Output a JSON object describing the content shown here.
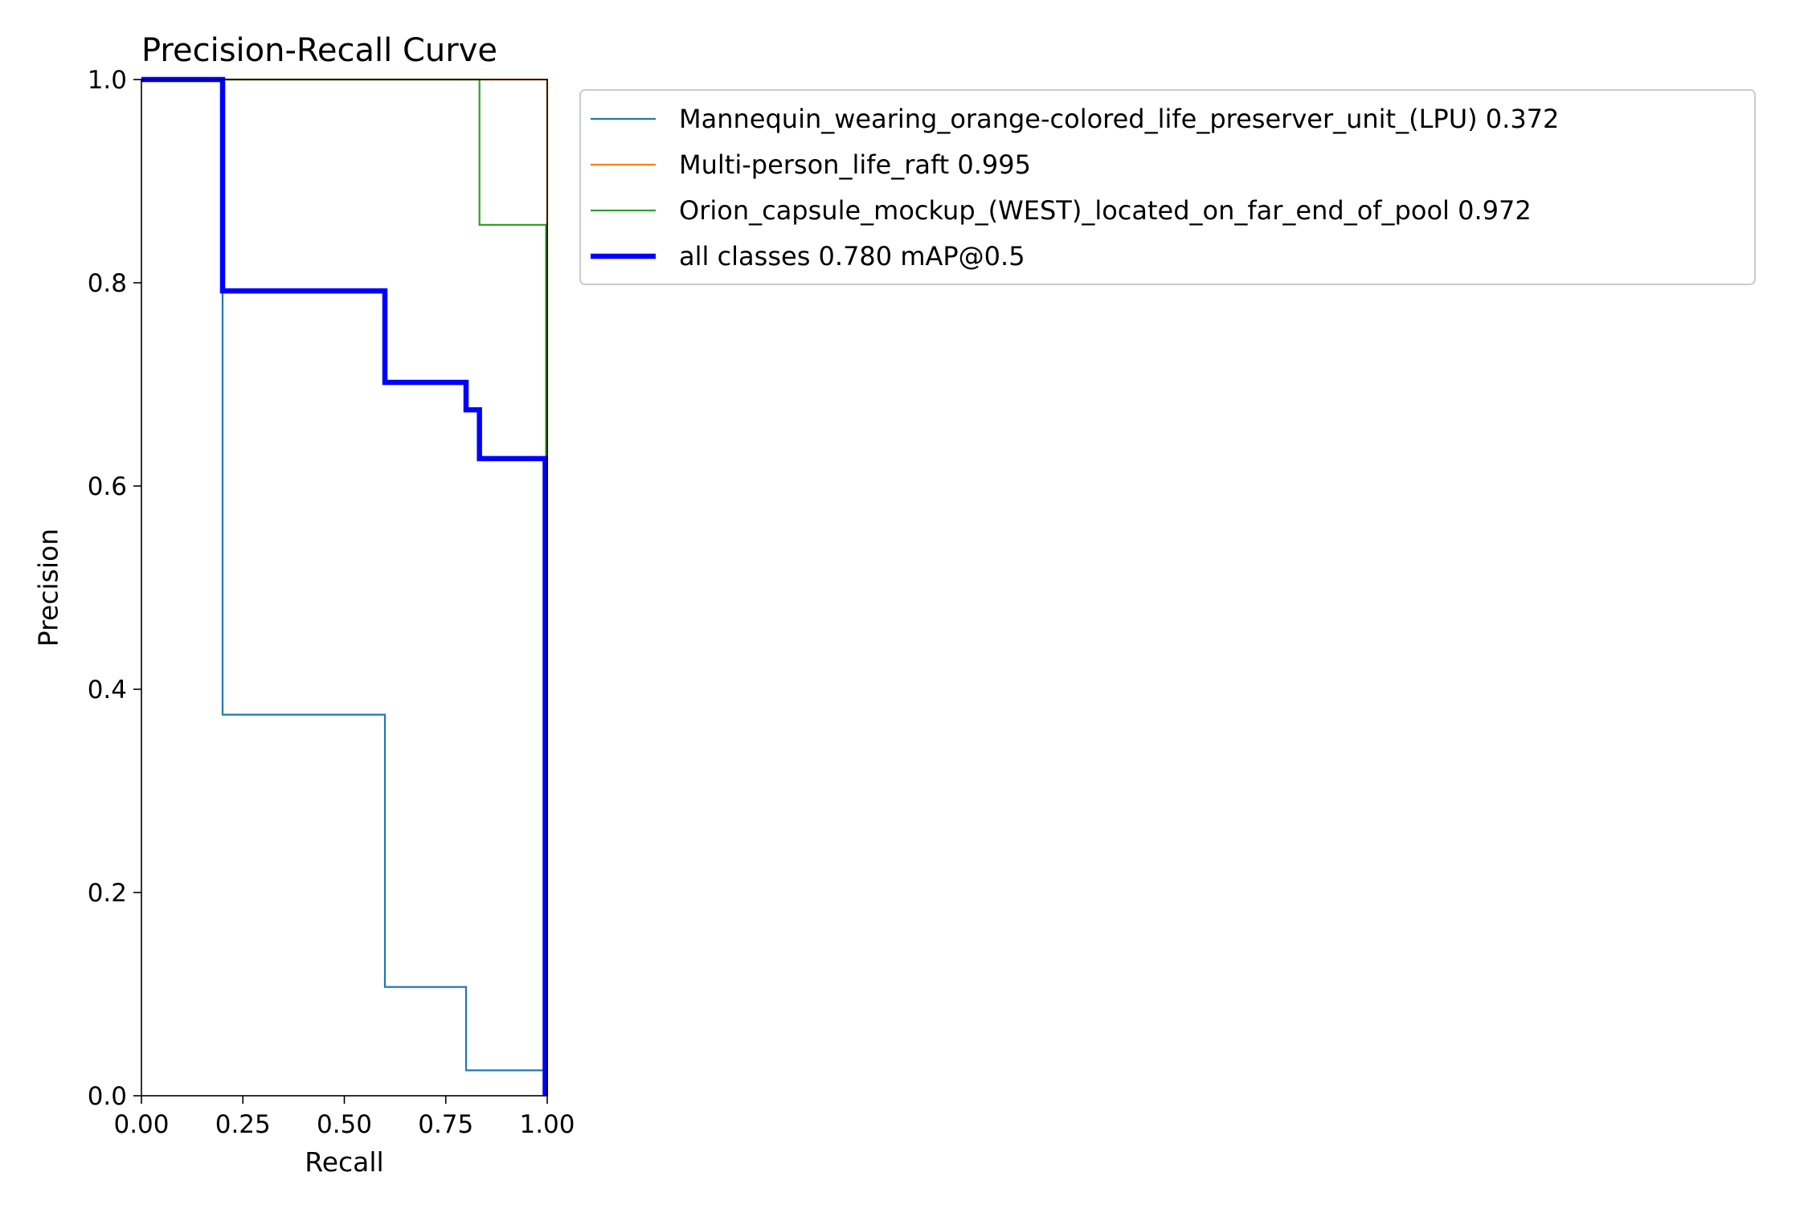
{
  "chart_data": {
    "type": "line",
    "title": "Precision-Recall Curve",
    "xlabel": "Recall",
    "ylabel": "Precision",
    "xlim": [
      0,
      1
    ],
    "ylim": [
      0,
      1
    ],
    "grid": false,
    "legend_position": "outside-right-top",
    "x_ticks": [
      0,
      0.25,
      0.5,
      0.75,
      1.0
    ],
    "x_tick_labels": [
      "0.00",
      "0.25",
      "0.50",
      "0.75",
      "1.00"
    ],
    "y_ticks": [
      0,
      0.2,
      0.4,
      0.6,
      0.8,
      1.0
    ],
    "y_tick_labels": [
      "0.0",
      "0.2",
      "0.4",
      "0.6",
      "0.8",
      "1.0"
    ],
    "series": [
      {
        "name": "Mannequin_wearing_orange-colored_life_preserver_unit_(LPU) 0.372",
        "color": "#1f77b4",
        "line_width": "thin",
        "x": [
          0,
          0.2,
          0.2,
          0.6,
          0.6,
          0.8,
          0.8,
          0.995,
          0.995
        ],
        "y": [
          1.0,
          1.0,
          0.375,
          0.375,
          0.107,
          0.107,
          0.025,
          0.025,
          0.0
        ]
      },
      {
        "name": "Multi-person_life_raft 0.995",
        "color": "#ff7f0e",
        "line_width": "thin",
        "x": [
          0,
          1.0,
          1.0
        ],
        "y": [
          1.0,
          1.0,
          0.0
        ]
      },
      {
        "name": "Orion_capsule_mockup_(WEST)_located_on_far_end_of_pool 0.972",
        "color": "#2ca02c",
        "line_width": "thin",
        "x": [
          0,
          0.833,
          0.833,
          0.997,
          0.997
        ],
        "y": [
          1.0,
          1.0,
          0.857,
          0.857,
          0.0
        ]
      },
      {
        "name": "all classes 0.780 mAP@0.5",
        "color": "#0000ff",
        "line_width": "thick",
        "x": [
          0,
          0.2,
          0.2,
          0.6,
          0.6,
          0.8,
          0.8,
          0.833,
          0.833,
          0.995,
          0.995
        ],
        "y": [
          1.0,
          1.0,
          0.792,
          0.792,
          0.702,
          0.702,
          0.675,
          0.675,
          0.627,
          0.627,
          0.0
        ]
      }
    ]
  }
}
